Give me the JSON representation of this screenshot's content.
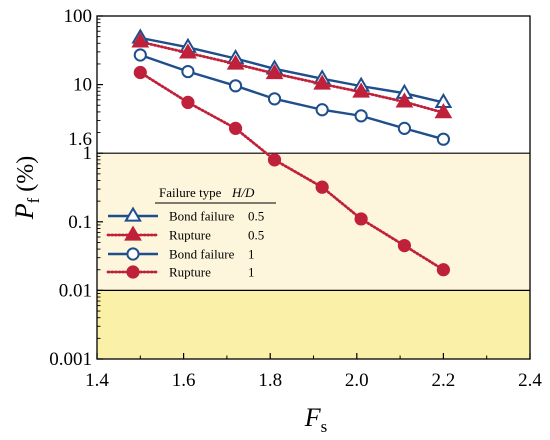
{
  "chart_data": {
    "type": "line",
    "y_scale": "log",
    "xlim": [
      1.4,
      2.4
    ],
    "ylim": [
      0.001,
      100
    ],
    "x_ticks": [
      "1.4",
      "1.6",
      "1.8",
      "2.0",
      "2.2",
      "2.4"
    ],
    "y_ticks": [
      "0.001",
      "0.01",
      "0.1",
      "1",
      "10",
      "100"
    ],
    "y_extra_tick": "1.6",
    "xlabel": {
      "main": "F",
      "sub": "s"
    },
    "ylabel": {
      "main": "P",
      "sub": "f",
      "unit": " (%)"
    },
    "bands": [
      {
        "from": 0.01,
        "to": 1,
        "color": "#fdf6dc"
      },
      {
        "from": 0.001,
        "to": 0.01,
        "color": "#fbf0a8"
      }
    ],
    "grid": false,
    "legend": {
      "placement": "left-middle",
      "header_type": "Failure type",
      "header_hd": "H/D",
      "rows": [
        {
          "label": "Bond failure",
          "hd": "0.5"
        },
        {
          "label": "Rupture",
          "hd": "0.5"
        },
        {
          "label": "Bond failure",
          "hd": "1"
        },
        {
          "label": "Rupture",
          "hd": "1"
        }
      ]
    },
    "series": [
      {
        "x": [
          1.5,
          1.61,
          1.72,
          1.81,
          1.92,
          2.01,
          2.11,
          2.2
        ],
        "y": [
          48,
          35,
          24,
          17,
          12.2,
          9.5,
          7.5,
          5.5
        ],
        "color": "#1f4e8c",
        "marker": "triangle",
        "filled": false,
        "dotted": false
      },
      {
        "x": [
          1.5,
          1.61,
          1.72,
          1.81,
          1.92,
          2.01,
          2.11,
          2.2
        ],
        "y": [
          42,
          29,
          20,
          14.5,
          10.2,
          7.8,
          5.6,
          3.9
        ],
        "color": "#c0213a",
        "marker": "triangle",
        "filled": true,
        "dotted": true
      },
      {
        "x": [
          1.5,
          1.61,
          1.72,
          1.81,
          1.92,
          2.01,
          2.11,
          2.2
        ],
        "y": [
          27,
          15.5,
          9.6,
          6.2,
          4.3,
          3.5,
          2.3,
          1.6
        ],
        "color": "#1f4e8c",
        "marker": "circle",
        "filled": false,
        "dotted": false
      },
      {
        "x": [
          1.5,
          1.61,
          1.72,
          1.81,
          1.92,
          2.01,
          2.11,
          2.2
        ],
        "y": [
          15,
          5.5,
          2.3,
          0.8,
          0.32,
          0.11,
          0.045,
          0.02
        ],
        "color": "#c0213a",
        "marker": "circle",
        "filled": true,
        "dotted": true
      }
    ]
  }
}
